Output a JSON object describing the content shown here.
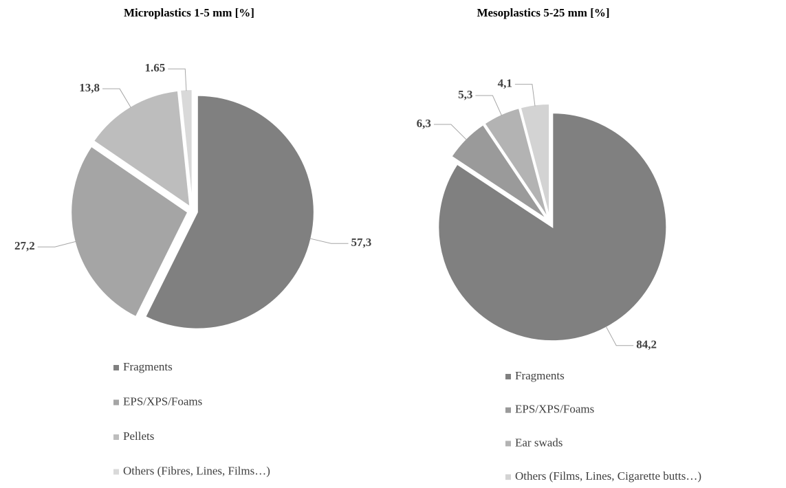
{
  "chart_data": [
    {
      "type": "pie",
      "title": "Microplastics 1-5 mm [%]",
      "categories": [
        "Fragments",
        "EPS/XPS/Foams",
        "Pellets",
        "Others (Fibres, Lines, Films…)"
      ],
      "values": [
        57.3,
        27.2,
        13.8,
        1.65
      ],
      "value_labels": [
        "57,3",
        "27,2",
        "13,8",
        "1.65"
      ],
      "colors": [
        "#808080",
        "#a5a5a5",
        "#bdbdbd",
        "#d9d9d9"
      ]
    },
    {
      "type": "pie",
      "title": "Mesoplastics 5-25 mm [%]",
      "categories": [
        "Fragments",
        "EPS/XPS/Foams",
        "Ear swads",
        "Others (Films, Lines, Cigarette butts…)"
      ],
      "values": [
        84.2,
        6.3,
        5.3,
        4.1
      ],
      "value_labels": [
        "84,2",
        "6,3",
        "5,3",
        "4,1"
      ],
      "colors": [
        "#808080",
        "#9a9a9a",
        "#b3b3b3",
        "#d3d3d3"
      ]
    }
  ]
}
